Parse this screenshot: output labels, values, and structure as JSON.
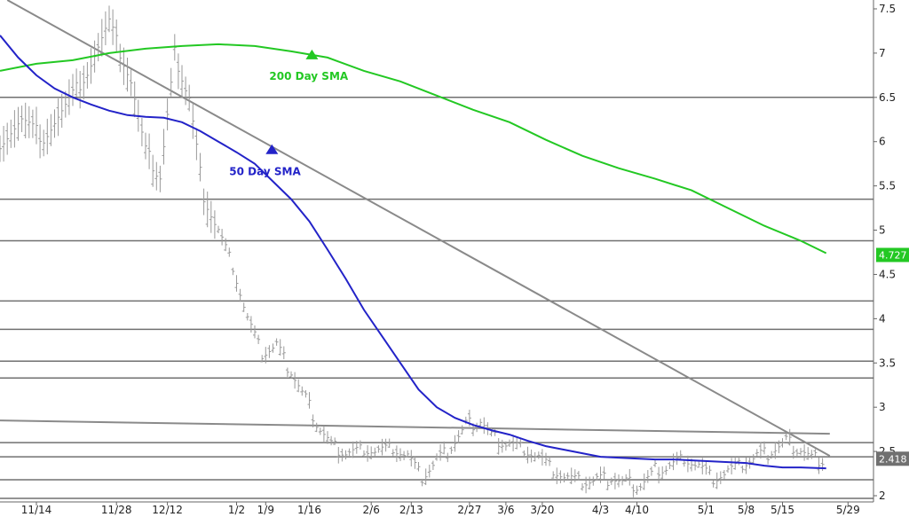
{
  "chart_data": {
    "type": "line",
    "title": "",
    "xlabel": "",
    "ylabel": "",
    "ylim": [
      1.93,
      7.6
    ],
    "y_ticks": [
      "7.5",
      "7",
      "6.5",
      "6",
      "5.5",
      "5",
      "4.5",
      "4",
      "3.5",
      "3",
      "2.5",
      "2"
    ],
    "x_ticks": [
      "11/14",
      "11/28",
      "12/12",
      "1/2",
      "1/9",
      "1/16",
      "2/6",
      "2/13",
      "2/27",
      "3/6",
      "3/20",
      "4/3",
      "4/10",
      "5/1",
      "5/8",
      "5/15",
      "5/29"
    ],
    "grid": false,
    "legend": "none",
    "last_value_label": "4.727",
    "last_price_label": "2.418",
    "price_bar_color": "#9a9a9a",
    "sma50_color": "#2323c8",
    "sma200_color": "#23c823",
    "trendline_color": "#8a8a8a",
    "hline_color": "#707070",
    "last_value_bg": "#23c823",
    "last_price_bg": "#707070",
    "horizontal_levels": [
      6.5,
      5.35,
      4.88,
      4.2,
      3.88,
      3.52,
      3.33,
      2.6,
      2.44,
      2.18,
      1.97
    ],
    "trendlines": [
      {
        "from": [
          2,
          7.6
        ],
        "to": [
          228,
          2.45
        ]
      },
      {
        "from": [
          0,
          2.85
        ],
        "to": [
          228,
          2.7
        ]
      }
    ],
    "annotations": [
      {
        "text": "200 Day SMA",
        "x": 74,
        "y": 6.7,
        "marker_y": 6.99,
        "series": "sma200"
      },
      {
        "text": "50 Day SMA",
        "x": 63,
        "y": 5.62,
        "marker_y": 5.92,
        "series": "sma50"
      }
    ],
    "sma200": {
      "x": [
        0,
        10,
        20,
        30,
        40,
        50,
        60,
        70,
        80,
        90,
        100,
        110,
        120,
        130,
        140,
        150,
        160,
        170,
        180,
        190,
        200,
        210,
        220,
        227
      ],
      "values": [
        6.8,
        6.88,
        6.92,
        7.0,
        7.05,
        7.08,
        7.1,
        7.08,
        7.02,
        6.95,
        6.8,
        6.68,
        6.52,
        6.36,
        6.22,
        6.02,
        5.84,
        5.7,
        5.58,
        5.45,
        5.25,
        5.05,
        4.88,
        4.74
      ]
    },
    "sma50": {
      "x": [
        0,
        5,
        10,
        15,
        20,
        25,
        30,
        35,
        40,
        45,
        50,
        55,
        60,
        65,
        70,
        75,
        80,
        85,
        90,
        95,
        100,
        105,
        110,
        115,
        120,
        125,
        130,
        135,
        140,
        145,
        150,
        155,
        160,
        165,
        170,
        175,
        180,
        185,
        190,
        195,
        200,
        205,
        210,
        215,
        220,
        227
      ],
      "values": [
        7.2,
        6.95,
        6.75,
        6.6,
        6.5,
        6.42,
        6.35,
        6.3,
        6.28,
        6.27,
        6.22,
        6.12,
        6.0,
        5.88,
        5.75,
        5.55,
        5.35,
        5.1,
        4.78,
        4.45,
        4.1,
        3.8,
        3.5,
        3.2,
        3.0,
        2.88,
        2.8,
        2.74,
        2.69,
        2.62,
        2.56,
        2.52,
        2.48,
        2.44,
        2.43,
        2.42,
        2.41,
        2.41,
        2.4,
        2.39,
        2.38,
        2.37,
        2.34,
        2.32,
        2.32,
        2.31
      ]
    },
    "price": {
      "x": [
        0,
        6,
        12,
        18,
        24,
        30,
        36,
        40,
        44,
        48,
        52,
        56,
        60,
        64,
        68,
        72,
        76,
        80,
        84,
        88,
        92,
        96,
        100,
        104,
        108,
        112,
        116,
        120,
        124,
        128,
        132,
        136,
        140,
        144,
        148,
        152,
        156,
        160,
        164,
        168,
        172,
        176,
        180,
        184,
        188,
        192,
        196,
        200,
        204,
        208,
        212,
        216,
        220,
        224,
        227
      ],
      "values": [
        6.0,
        6.25,
        6.05,
        6.4,
        6.8,
        7.35,
        6.7,
        5.9,
        5.6,
        7.0,
        6.5,
        5.4,
        5.0,
        4.6,
        4.0,
        3.6,
        3.7,
        3.4,
        3.1,
        2.75,
        2.55,
        2.5,
        2.55,
        2.52,
        2.55,
        2.45,
        2.2,
        2.4,
        2.55,
        2.8,
        2.85,
        2.65,
        2.6,
        2.55,
        2.45,
        2.3,
        2.2,
        2.15,
        2.18,
        2.2,
        2.15,
        2.12,
        2.3,
        2.35,
        2.45,
        2.35,
        2.2,
        2.28,
        2.35,
        2.45,
        2.5,
        2.62,
        2.52,
        2.42,
        2.418
      ]
    }
  }
}
